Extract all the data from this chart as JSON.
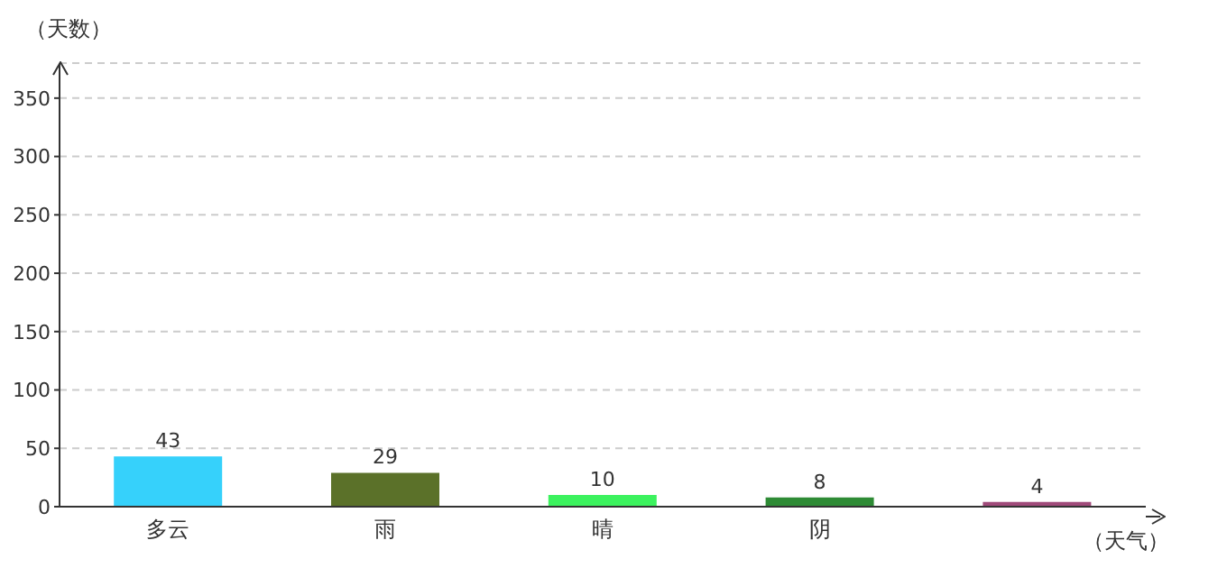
{
  "chart_data": {
    "type": "bar",
    "xlabel": "（天气）",
    "ylabel": "（天数）",
    "categories": [
      "多云",
      "雨",
      "晴",
      "阴",
      null
    ],
    "values": [
      43,
      29,
      10,
      8,
      4
    ],
    "colors": [
      "#36d1fb",
      "#5b7129",
      "#3cf25e",
      "#2e8b35",
      "#a04a7a"
    ],
    "ylim": [
      0,
      380
    ],
    "yticks": [
      0,
      50,
      100,
      150,
      200,
      250,
      300,
      350
    ],
    "grid": "y",
    "data_labels": true
  }
}
